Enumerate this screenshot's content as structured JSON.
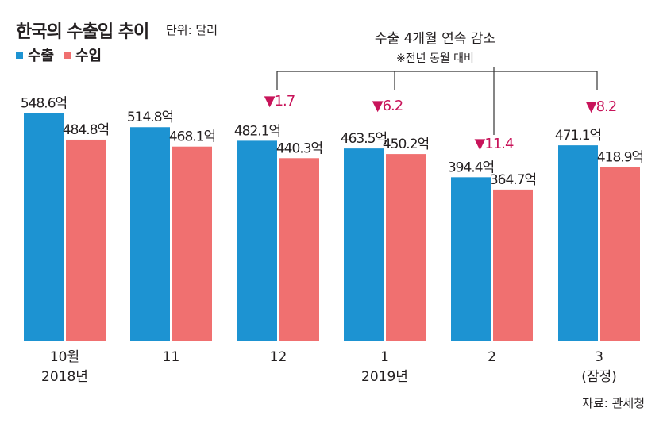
{
  "header": {
    "title": "한국의 수출입 추이",
    "unit": "단위: 달러"
  },
  "source": "자료: 관세청",
  "colors": {
    "export": "#1d93d2",
    "import": "#f07070",
    "decline": "#c8145a",
    "text": "#231f20",
    "bracket": "#333333"
  },
  "chart_data": {
    "type": "bar",
    "title": "한국의 수출입 추이",
    "unit_label": "단위: 달러",
    "categories": [
      "10월",
      "11",
      "12",
      "1",
      "2",
      "3"
    ],
    "category_sublabels": [
      "2018년",
      "",
      "",
      "2019년",
      "",
      "(잠정)"
    ],
    "series": [
      {
        "name": "수출",
        "values": [
          548.6,
          514.8,
          482.1,
          463.5,
          394.4,
          471.1
        ],
        "labels": [
          "548.6억",
          "514.8억",
          "482.1억",
          "463.5억",
          "394.4억",
          "471.1억"
        ]
      },
      {
        "name": "수입",
        "values": [
          484.8,
          468.1,
          440.3,
          450.2,
          364.7,
          418.9
        ],
        "labels": [
          "484.8억",
          "468.1억",
          "440.3억",
          "450.2억",
          "364.7억",
          "418.9억"
        ]
      }
    ],
    "ylim": [
      0,
      560
    ],
    "annotation": {
      "title": "수출 4개월 연속 감소",
      "subtitle": "※전년 동월 대비",
      "declines": [
        {
          "category": "12",
          "label": "▼1.7"
        },
        {
          "category": "1",
          "label": "▼6.2"
        },
        {
          "category": "2",
          "label": "▼11.4"
        },
        {
          "category": "3",
          "label": "▼8.2"
        }
      ]
    },
    "legend_position": "top-left",
    "grid": false,
    "source": "자료: 관세청"
  }
}
